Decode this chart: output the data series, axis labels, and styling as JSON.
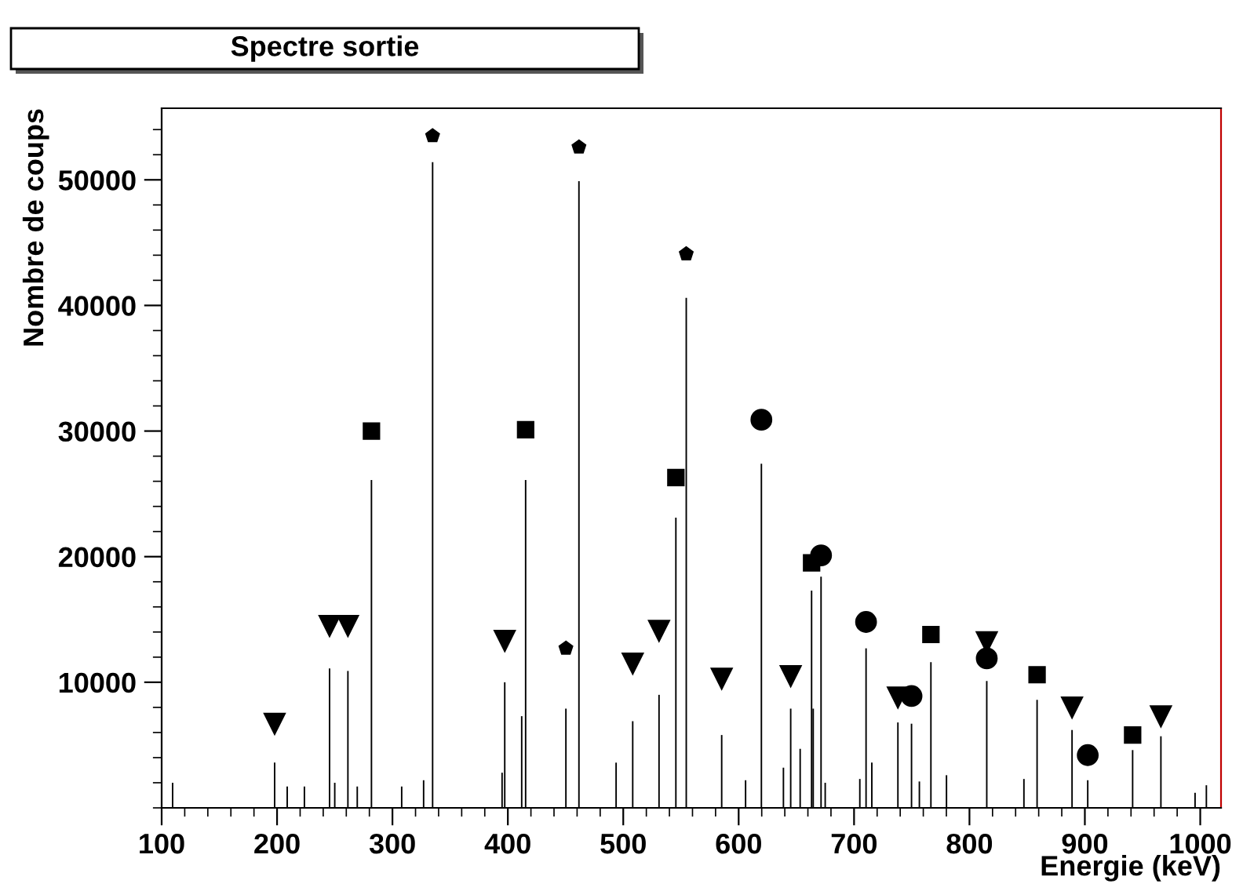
{
  "chart_data": {
    "type": "bar",
    "title": "Spectre sortie",
    "xlabel": "Energie (keV)",
    "ylabel": "Nombre de coups",
    "xlim": [
      100,
      1018
    ],
    "xticks": [
      100,
      200,
      300,
      400,
      500,
      600,
      700,
      800,
      900,
      1000
    ],
    "ylim": [
      0,
      55700
    ],
    "yticks": [
      10000,
      20000,
      30000,
      40000,
      50000
    ],
    "grid": false,
    "series": [
      {
        "color": "#000000",
        "x": [
          109.5,
          197.9,
          208.8,
          223.7,
          245.5,
          250,
          261.4,
          269.5,
          281.8,
          308,
          327,
          334.8,
          395,
          397.3,
          412,
          415.4,
          450.3,
          461.6,
          493.8,
          508.2,
          531,
          545.6,
          554.6,
          585.3,
          606,
          619.7,
          638.8,
          645.1,
          653.3,
          663.2,
          664.6,
          671.4,
          675,
          705,
          710.4,
          715.4,
          738,
          749.8,
          756.6,
          766.6,
          780.1,
          815,
          847.2,
          858.6,
          888.9,
          902.5,
          941.4,
          965.9,
          995.5,
          1005.3
        ],
        "values": [
          2000,
          3600,
          1700,
          1700,
          11100,
          2000,
          10900,
          1700,
          26100,
          1700,
          2200,
          51400,
          2800,
          10000,
          7300,
          26100,
          7900,
          49900,
          3600,
          6900,
          9000,
          23100,
          40600,
          5800,
          2200,
          27400,
          3200,
          7900,
          4700,
          17300,
          7900,
          18400,
          2000,
          2300,
          12700,
          3600,
          6800,
          6700,
          2100,
          11600,
          2600,
          10100,
          2300,
          8600,
          6200,
          2200,
          4600,
          5700,
          1200,
          1800
        ]
      },
      {
        "type": "scatter",
        "marker": "triangle",
        "color": "#000000",
        "x": [
          197.9,
          245.5,
          261.4,
          397.3,
          508.2,
          531,
          585.3,
          645.1,
          738,
          815,
          888.9,
          965.9
        ],
        "values": [
          6700,
          14500,
          14500,
          13300,
          11500,
          14100,
          10300,
          10500,
          8800,
          13200,
          8000,
          7300
        ]
      },
      {
        "type": "scatter",
        "marker": "square",
        "color": "#000000",
        "x": [
          281.8,
          415.4,
          545.6,
          663.2,
          766.6,
          858.6,
          941.4
        ],
        "values": [
          30000,
          30100,
          26300,
          19500,
          13800,
          10600,
          5800
        ]
      },
      {
        "type": "scatter",
        "marker": "star",
        "color": "#000000",
        "x": [
          334.8,
          450.3,
          461.6,
          554.6
        ],
        "values": [
          53500,
          12700,
          52600,
          44100
        ]
      },
      {
        "type": "scatter",
        "marker": "circle",
        "color": "#000000",
        "x": [
          619.7,
          671.4,
          710.4,
          749.8,
          815,
          902.5
        ],
        "values": [
          30900,
          20100,
          14800,
          8900,
          11900,
          4200
        ]
      }
    ]
  }
}
